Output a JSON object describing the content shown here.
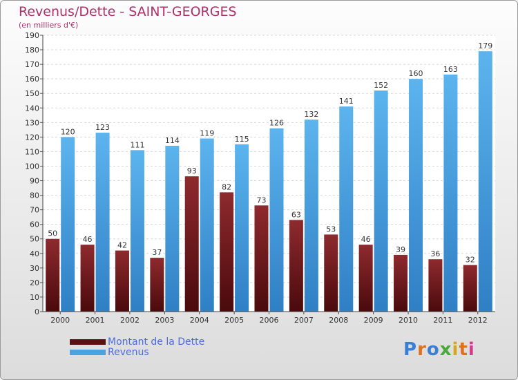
{
  "header": {
    "title": "Revenus/Dette - SAINT-GEORGES",
    "subtitle": "(en milliers d'€)"
  },
  "logo": {
    "text": "Proxiti"
  },
  "colors": {
    "debt": "#7a1a1e",
    "revenue": "#4aa3e0",
    "title": "#b0306a",
    "legend_text": "#4a6ae0"
  },
  "chart_data": {
    "type": "bar",
    "title": "Revenus/Dette - SAINT-GEORGES",
    "subtitle": "(en milliers d'€)",
    "categories": [
      "2000",
      "2001",
      "2002",
      "2003",
      "2004",
      "2005",
      "2006",
      "2007",
      "2008",
      "2009",
      "2010",
      "2011",
      "2012"
    ],
    "series": [
      {
        "name": "Montant de la Dette",
        "values": [
          50,
          46,
          42,
          37,
          93,
          82,
          73,
          63,
          53,
          46,
          39,
          36,
          32
        ]
      },
      {
        "name": "Revenus",
        "values": [
          120,
          123,
          111,
          114,
          119,
          115,
          126,
          132,
          141,
          152,
          160,
          163,
          179
        ]
      }
    ],
    "ylim": [
      0,
      190
    ],
    "ytick_step": 10,
    "grid": true,
    "legend_position": "bottom-left"
  }
}
